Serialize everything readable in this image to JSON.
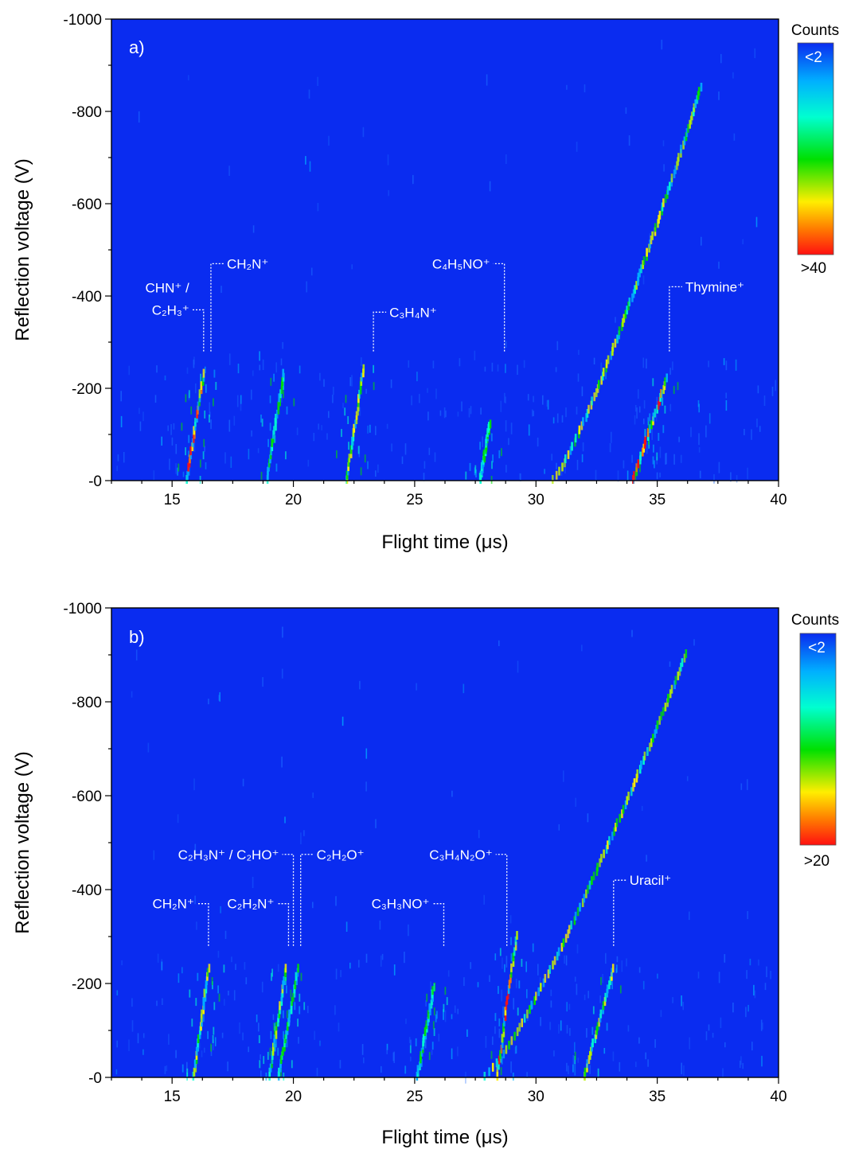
{
  "colors": {
    "background": "#0a2cf0",
    "colormap": [
      "#ff1010",
      "#ff7a00",
      "#ffee00",
      "#00e000",
      "#00ffd0",
      "#00b0ff",
      "#0a2cf0"
    ]
  },
  "chart_data": [
    {
      "type": "heatmap",
      "panel_label": "a)",
      "xlabel": "Flight time (μs)",
      "ylabel": "Reflection voltage (V)",
      "xlim": [
        12.5,
        40
      ],
      "ylim": [
        0,
        -1000
      ],
      "xticks": [
        "15",
        "20",
        "25",
        "30",
        "35",
        "40"
      ],
      "yticks": [
        "-1000",
        "-800",
        "-600",
        "-400",
        "-200",
        "-0"
      ],
      "colorbar": {
        "title": "Counts",
        "min_label": "<2",
        "max_label": ">40"
      },
      "annotations": [
        {
          "label": "CHN⁺ /",
          "label2": "C₂H₃⁺",
          "x": 16.3,
          "y": -370
        },
        {
          "label": "CH₂N⁺",
          "x": 16.6,
          "y": -470
        },
        {
          "label": "C₃H₄N⁺",
          "x": 23.3,
          "y": -365
        },
        {
          "label": "C₄H₅NO⁺",
          "x": 28.7,
          "y": -470
        },
        {
          "label": "Thymine⁺",
          "x": 35.5,
          "y": -420
        }
      ],
      "traces": [
        {
          "x0": 15.6,
          "x1": 16.3,
          "vmax": -230,
          "intensity": "high"
        },
        {
          "x0": 18.9,
          "x1": 19.6,
          "vmax": -230,
          "intensity": "low"
        },
        {
          "x0": 22.2,
          "x1": 22.9,
          "vmax": -240,
          "intensity": "medium"
        },
        {
          "x0": 27.7,
          "x1": 28.1,
          "vmax": -120,
          "intensity": "low"
        },
        {
          "x0": 30.7,
          "x1": 36.8,
          "vmax": -850,
          "intensity": "medium",
          "curved": true
        },
        {
          "x0": 34.0,
          "x1": 35.4,
          "vmax": -220,
          "intensity": "high"
        }
      ]
    },
    {
      "type": "heatmap",
      "panel_label": "b)",
      "xlabel": "Flight time (μs)",
      "ylabel": "Reflection voltage (V)",
      "xlim": [
        12.5,
        40
      ],
      "ylim": [
        0,
        -1000
      ],
      "xticks": [
        "15",
        "20",
        "25",
        "30",
        "35",
        "40"
      ],
      "yticks": [
        "-1000",
        "-800",
        "-600",
        "-400",
        "-200",
        "-0"
      ],
      "colorbar": {
        "title": "Counts",
        "min_label": "<2",
        "max_label": ">20"
      },
      "annotations": [
        {
          "label": "CH₂N⁺",
          "x": 16.5,
          "y": -370
        },
        {
          "label": "C₂H₂N⁺",
          "x": 19.8,
          "y": -370
        },
        {
          "label": "C₂H₃N⁺ / C₂HO⁺",
          "x": 20.0,
          "y": -475
        },
        {
          "label": "C₂H₂O⁺",
          "x": 20.3,
          "y": -475
        },
        {
          "label": "C₃H₃NO⁺",
          "x": 26.2,
          "y": -370
        },
        {
          "label": "C₃H₄N₂O⁺",
          "x": 28.8,
          "y": -475
        },
        {
          "label": "Uracil⁺",
          "x": 33.2,
          "y": -420
        }
      ],
      "traces": [
        {
          "x0": 15.9,
          "x1": 16.5,
          "vmax": -230,
          "intensity": "medium"
        },
        {
          "x0": 19.0,
          "x1": 19.7,
          "vmax": -230,
          "intensity": "medium"
        },
        {
          "x0": 19.4,
          "x1": 20.2,
          "vmax": -230,
          "intensity": "low"
        },
        {
          "x0": 25.1,
          "x1": 25.8,
          "vmax": -190,
          "intensity": "low"
        },
        {
          "x0": 27.9,
          "x1": 36.2,
          "vmax": -900,
          "intensity": "medium",
          "curved": true
        },
        {
          "x0": 28.4,
          "x1": 29.2,
          "vmax": -300,
          "intensity": "high"
        },
        {
          "x0": 32.0,
          "x1": 33.2,
          "vmax": -230,
          "intensity": "medium"
        }
      ]
    }
  ]
}
